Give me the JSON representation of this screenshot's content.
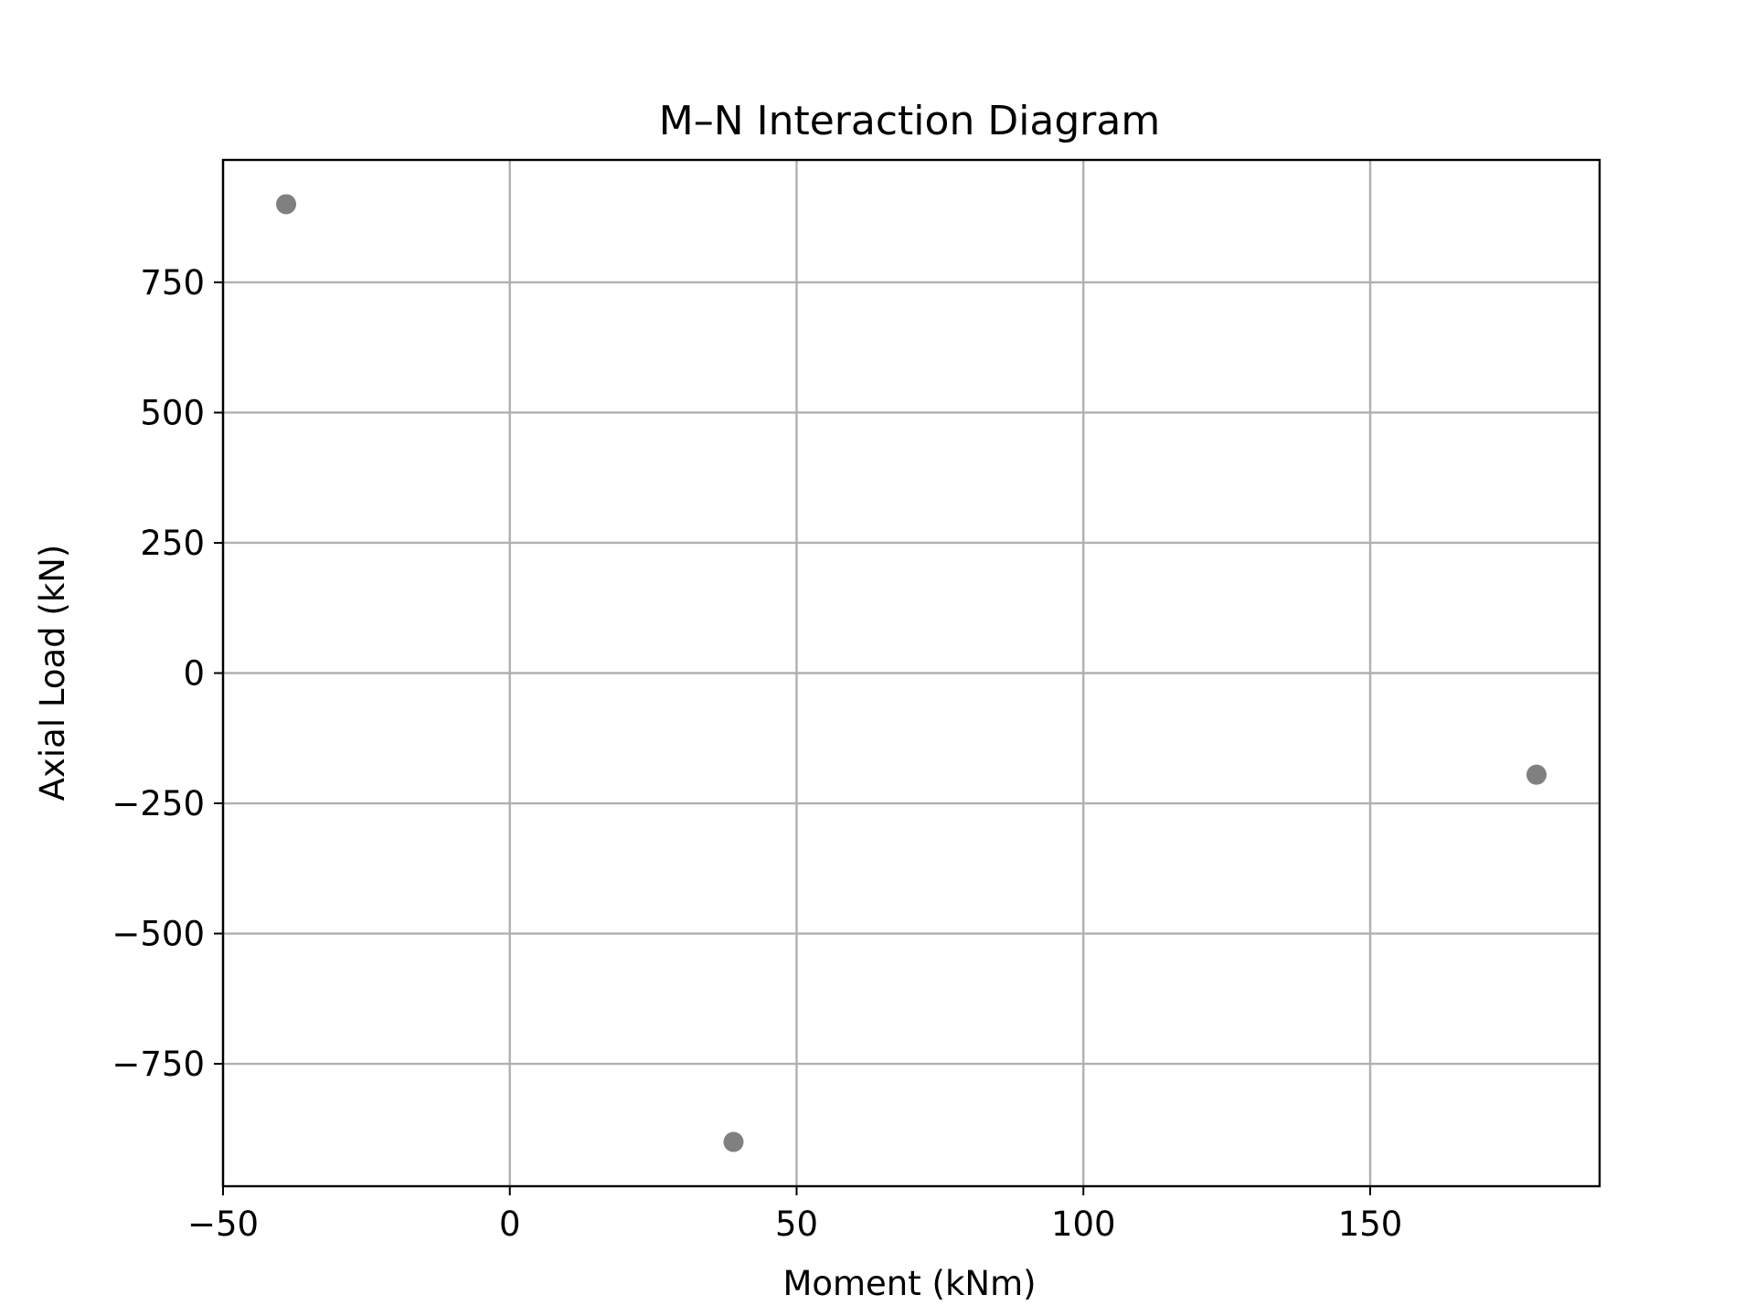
{
  "chart_data": {
    "type": "scatter",
    "title": "M–N Interaction Diagram",
    "xlabel": "Moment (kNm)",
    "ylabel": "Axial Load (kN)",
    "xlim": [
      -50,
      190
    ],
    "ylim": [
      -985,
      985
    ],
    "x_ticks": [
      -50,
      0,
      50,
      100,
      150
    ],
    "x_tick_labels": [
      "−50",
      "0",
      "50",
      "100",
      "150"
    ],
    "y_ticks": [
      -750,
      -500,
      -250,
      0,
      250,
      500,
      750
    ],
    "y_tick_labels": [
      "−750",
      "−500",
      "−250",
      "0",
      "250",
      "500",
      "750"
    ],
    "grid": true,
    "marker_color": "#808080",
    "points": [
      {
        "x": -39,
        "y": 900
      },
      {
        "x": 39,
        "y": -900
      },
      {
        "x": 179,
        "y": -195
      }
    ]
  }
}
